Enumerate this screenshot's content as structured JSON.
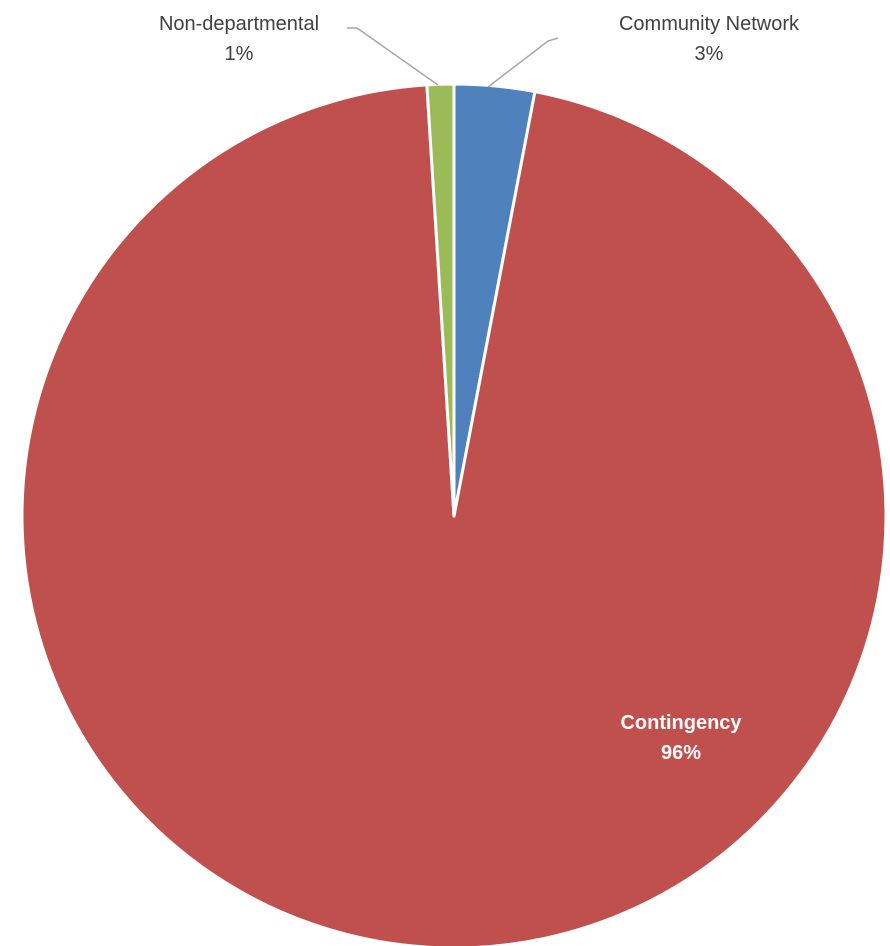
{
  "chart_data": {
    "type": "pie",
    "title": "",
    "start_angle_deg": 0,
    "direction": "clockwise",
    "slices": [
      {
        "label": "Community Network",
        "value": 3,
        "value_label": "3%",
        "color": "#4f81bd",
        "label_position": "outside"
      },
      {
        "label": "Contingency",
        "value": 96,
        "value_label": "96%",
        "color": "#c0504d",
        "label_position": "inside"
      },
      {
        "label": "Non-departmental",
        "value": 1,
        "value_label": "1%",
        "color": "#9bbb59",
        "label_position": "outside"
      }
    ],
    "legend": "none"
  }
}
